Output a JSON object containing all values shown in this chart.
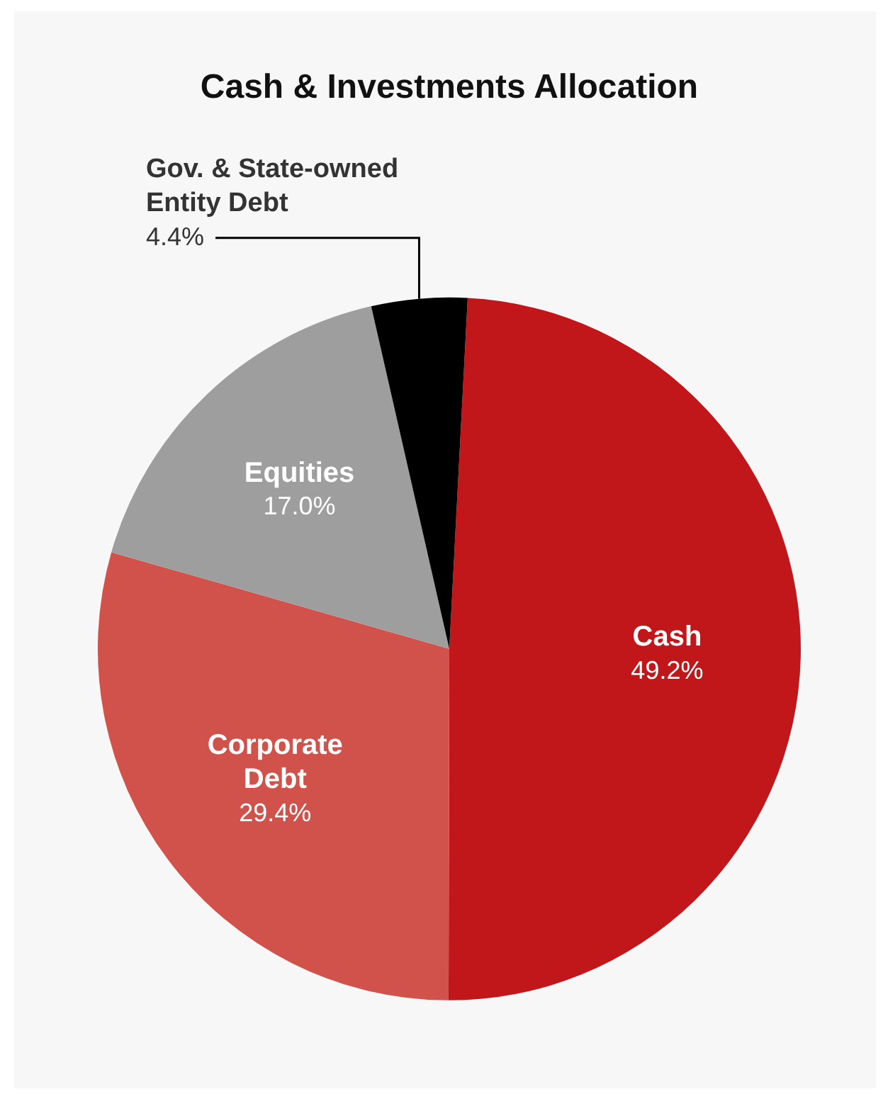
{
  "chart_data": {
    "type": "pie",
    "title": "Cash & Investments Allocation",
    "categories": [
      "Cash",
      "Corporate Debt",
      "Equities",
      "Gov. & State-owned Entity Debt"
    ],
    "values": [
      49.2,
      29.4,
      17.0,
      4.4
    ],
    "colors": [
      "#c1171b",
      "#d0524a",
      "#9e9e9e",
      "#000000"
    ],
    "value_labels": [
      "49.2%",
      "29.4%",
      "17.0%",
      "4.4%"
    ],
    "legend": false
  }
}
